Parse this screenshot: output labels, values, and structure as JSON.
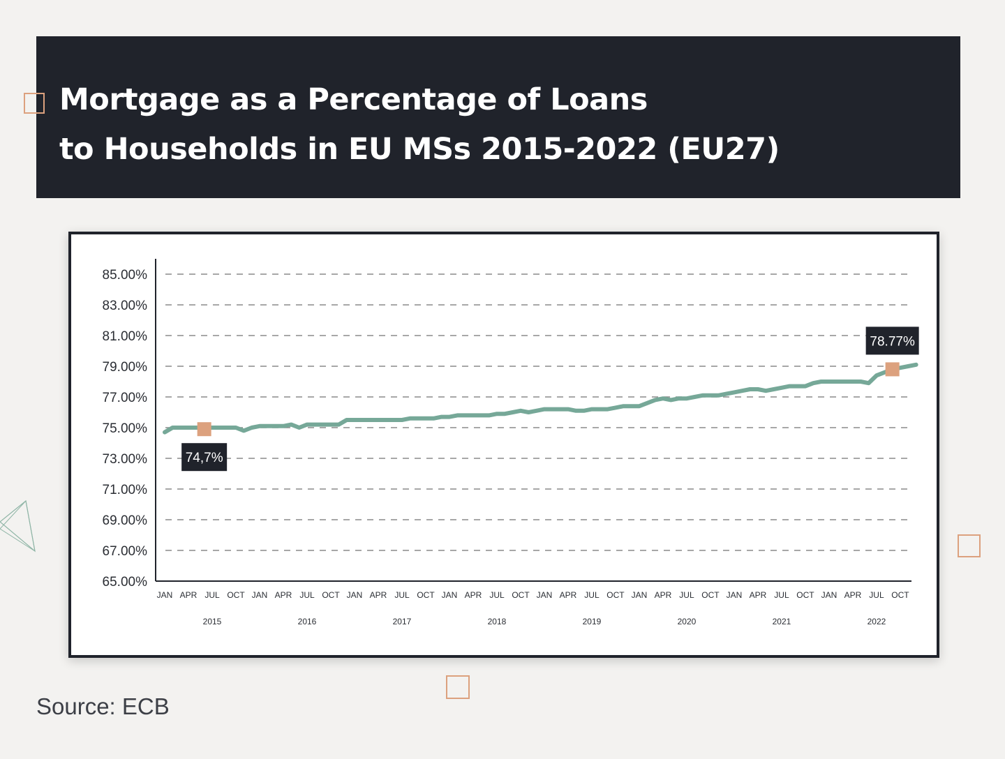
{
  "title": {
    "line1": "Mortgage as a Percentage of Loans",
    "line2": "to Households in EU MSs 2015-2022 (EU27)"
  },
  "source": "Source: ECB",
  "colors": {
    "background": "#f3f2f0",
    "header": "#20232b",
    "line": "#76a898",
    "marker": "#dca17e",
    "callout": "#20232b",
    "grid": "#8a8a8a"
  },
  "chart_data": {
    "type": "line",
    "ylim": [
      65,
      85
    ],
    "y_ticks": [
      "85.00%",
      "83.00%",
      "81.00%",
      "79.00%",
      "77.00%",
      "75.00%",
      "73.00%",
      "71.00%",
      "69.00%",
      "67.00%",
      "65.00%"
    ],
    "grid": "dashed horizontal",
    "x_months": [
      "JAN",
      "APR",
      "JUL",
      "OCT",
      "JAN",
      "APR",
      "JUL",
      "OCT",
      "JAN",
      "APR",
      "JUL",
      "OCT",
      "JAN",
      "APR",
      "JUL",
      "OCT",
      "JAN",
      "APR",
      "JUL",
      "OCT",
      "JAN",
      "APR",
      "JUL",
      "OCT",
      "JAN",
      "APR",
      "JUL",
      "OCT",
      "JAN",
      "APR",
      "JUL",
      "OCT"
    ],
    "x_years": [
      "2015",
      "2016",
      "2017",
      "2018",
      "2019",
      "2020",
      "2021",
      "2022"
    ],
    "series": [
      {
        "x": [
          "2015-01",
          "2015-02",
          "2015-03",
          "2015-04",
          "2015-05",
          "2015-06",
          "2015-07",
          "2015-08",
          "2015-09",
          "2015-10",
          "2015-11",
          "2015-12",
          "2016-01",
          "2016-02",
          "2016-03",
          "2016-04",
          "2016-05",
          "2016-06",
          "2016-07",
          "2016-08",
          "2016-09",
          "2016-10",
          "2016-11",
          "2016-12",
          "2017-01",
          "2017-02",
          "2017-03",
          "2017-04",
          "2017-05",
          "2017-06",
          "2017-07",
          "2017-08",
          "2017-09",
          "2017-10",
          "2017-11",
          "2017-12",
          "2018-01",
          "2018-02",
          "2018-03",
          "2018-04",
          "2018-05",
          "2018-06",
          "2018-07",
          "2018-08",
          "2018-09",
          "2018-10",
          "2018-11",
          "2018-12",
          "2019-01",
          "2019-02",
          "2019-03",
          "2019-04",
          "2019-05",
          "2019-06",
          "2019-07",
          "2019-08",
          "2019-09",
          "2019-10",
          "2019-11",
          "2019-12",
          "2020-01",
          "2020-02",
          "2020-03",
          "2020-04",
          "2020-05",
          "2020-06",
          "2020-07",
          "2020-08",
          "2020-09",
          "2020-10",
          "2020-11",
          "2020-12",
          "2021-01",
          "2021-02",
          "2021-03",
          "2021-04",
          "2021-05",
          "2021-06",
          "2021-07",
          "2021-08",
          "2021-09",
          "2021-10",
          "2021-11",
          "2021-12",
          "2022-01",
          "2022-02",
          "2022-03",
          "2022-04",
          "2022-05",
          "2022-06",
          "2022-07",
          "2022-08",
          "2022-09",
          "2022-10",
          "2022-11",
          "2022-12"
        ],
        "values": [
          74.7,
          75.0,
          75.0,
          75.0,
          75.0,
          75.0,
          75.0,
          75.0,
          75.0,
          75.0,
          74.8,
          75.0,
          75.1,
          75.1,
          75.1,
          75.1,
          75.2,
          75.0,
          75.2,
          75.2,
          75.2,
          75.2,
          75.2,
          75.5,
          75.5,
          75.5,
          75.5,
          75.5,
          75.5,
          75.5,
          75.5,
          75.6,
          75.6,
          75.6,
          75.6,
          75.7,
          75.7,
          75.8,
          75.8,
          75.8,
          75.8,
          75.8,
          75.9,
          75.9,
          76.0,
          76.1,
          76.0,
          76.1,
          76.2,
          76.2,
          76.2,
          76.2,
          76.1,
          76.1,
          76.2,
          76.2,
          76.2,
          76.3,
          76.4,
          76.4,
          76.4,
          76.6,
          76.8,
          76.9,
          76.8,
          76.9,
          76.9,
          77.0,
          77.1,
          77.1,
          77.1,
          77.2,
          77.3,
          77.4,
          77.5,
          77.5,
          77.4,
          77.5,
          77.6,
          77.7,
          77.7,
          77.7,
          77.9,
          78.0,
          78.0,
          78.0,
          78.0,
          78.0,
          78.0,
          77.9,
          78.4,
          78.6,
          78.8,
          78.9,
          79.0,
          79.1
        ]
      }
    ],
    "annotations": [
      {
        "label": "74,7%",
        "x": "2015-06",
        "y": 74.9,
        "position": "below"
      },
      {
        "label": "78.77%",
        "x": "2022-09",
        "y": 78.8,
        "position": "above"
      }
    ]
  }
}
